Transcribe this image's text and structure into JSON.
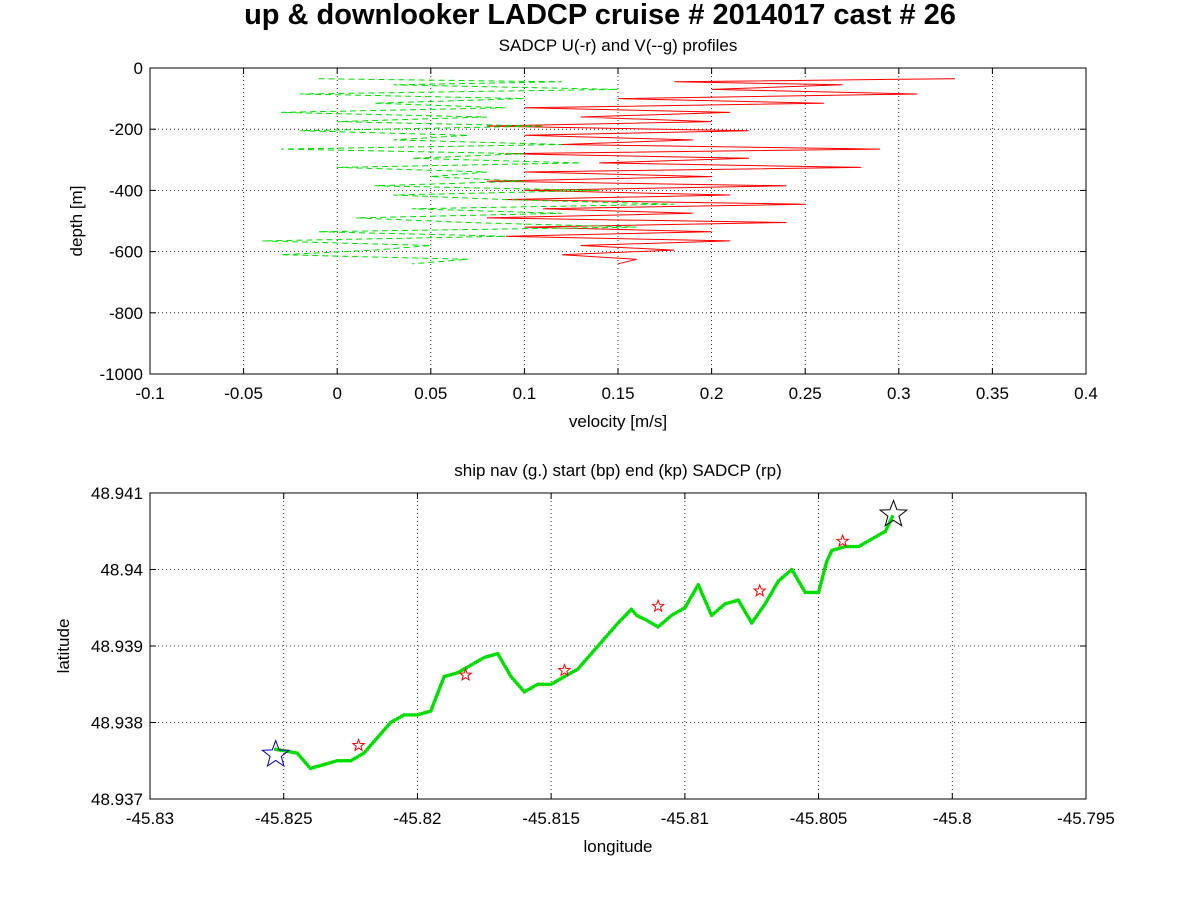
{
  "figure_title": "up & downlooker LADCP cruise # 2014017 cast # 26",
  "colors": {
    "u": "#ff0000",
    "v": "#00dd00",
    "start_star": "#0000aa",
    "end_star": "#000000",
    "sadcp": "#ff0000"
  },
  "chart_data": [
    {
      "type": "line",
      "title": "SADCP U(-r) and V(--g) profiles",
      "xlabel": "velocity [m/s]",
      "ylabel": "depth [m]",
      "xlim": [
        -0.1,
        0.4
      ],
      "ylim": [
        -1000,
        0
      ],
      "xticks": [
        -0.1,
        -0.05,
        0,
        0.05,
        0.1,
        0.15,
        0.2,
        0.25,
        0.3,
        0.35,
        0.4
      ],
      "xtick_labels": [
        "-0.1",
        "-0.05",
        "0",
        "0.05",
        "0.1",
        "0.15",
        "0.2",
        "0.25",
        "0.3",
        "0.35",
        "0.4"
      ],
      "yticks": [
        -1000,
        -800,
        -600,
        -400,
        -200,
        0
      ],
      "ytick_labels": [
        "-1000",
        "-800",
        "-600",
        "-400",
        "-200",
        "0"
      ],
      "grid": true,
      "series": [
        {
          "line_style": "solid",
          "color": "#ff0000",
          "depth": [
            -35,
            -45,
            -55,
            -70,
            -85,
            -100,
            -115,
            -130,
            -145,
            -160,
            -175,
            -190,
            -205,
            -220,
            -235,
            -250,
            -265,
            -280,
            -295,
            -310,
            -325,
            -340,
            -355,
            -370,
            -385,
            -400,
            -415,
            -430,
            -445,
            -460,
            -475,
            -490,
            -505,
            -520,
            -535,
            -550,
            -565,
            -580,
            -595,
            -610,
            -625,
            -640
          ],
          "velocity": [
            0.33,
            0.18,
            0.27,
            0.2,
            0.31,
            0.15,
            0.26,
            0.1,
            0.21,
            0.13,
            0.2,
            0.08,
            0.22,
            0.1,
            0.19,
            0.12,
            0.29,
            0.09,
            0.22,
            0.14,
            0.28,
            0.1,
            0.2,
            0.08,
            0.24,
            0.1,
            0.21,
            0.09,
            0.25,
            0.11,
            0.19,
            0.08,
            0.24,
            0.1,
            0.2,
            0.09,
            0.21,
            0.13,
            0.18,
            0.12,
            0.16,
            0.15
          ]
        },
        {
          "line_style": "dashed",
          "color": "#00dd00",
          "depth": [
            -35,
            -45,
            -55,
            -70,
            -85,
            -100,
            -115,
            -130,
            -145,
            -160,
            -175,
            -190,
            -205,
            -220,
            -235,
            -250,
            -265,
            -280,
            -295,
            -310,
            -325,
            -340,
            -355,
            -370,
            -385,
            -400,
            -415,
            -430,
            -445,
            -460,
            -475,
            -490,
            -505,
            -520,
            -535,
            -550,
            -565,
            -580,
            -595,
            -610,
            -625,
            -640
          ],
          "velocity": [
            -0.01,
            0.12,
            0.03,
            0.15,
            -0.02,
            0.1,
            0.02,
            0.09,
            -0.03,
            0.08,
            0.0,
            0.11,
            -0.02,
            0.07,
            0.03,
            0.12,
            -0.03,
            0.1,
            0.04,
            0.13,
            0.0,
            0.08,
            0.05,
            0.1,
            0.02,
            0.14,
            0.03,
            0.09,
            0.18,
            0.04,
            0.12,
            0.01,
            0.07,
            0.16,
            -0.01,
            0.09,
            -0.04,
            0.05,
            0.02,
            -0.03,
            0.07,
            0.04
          ]
        }
      ]
    },
    {
      "type": "scatter",
      "title": "ship nav (g.) start (bp) end (kp) SADCP (rp)",
      "xlabel": "longitude",
      "ylabel": "latitude",
      "xlim": [
        -45.83,
        -45.795
      ],
      "ylim": [
        48.937,
        48.941
      ],
      "xticks": [
        -45.83,
        -45.825,
        -45.82,
        -45.815,
        -45.81,
        -45.805,
        -45.8,
        -45.795
      ],
      "xtick_labels": [
        "-45.83",
        "-45.825",
        "-45.82",
        "-45.815",
        "-45.81",
        "-45.805",
        "-45.8",
        "-45.795"
      ],
      "yticks": [
        48.937,
        48.938,
        48.939,
        48.94,
        48.941
      ],
      "ytick_labels": [
        "48.937",
        "48.938",
        "48.939",
        "48.94",
        "48.941"
      ],
      "grid": true,
      "ship_track": {
        "lon": [
          -45.8253,
          -45.8245,
          -45.824,
          -45.8235,
          -45.823,
          -45.8225,
          -45.822,
          -45.8215,
          -45.821,
          -45.8205,
          -45.82,
          -45.8195,
          -45.819,
          -45.8185,
          -45.818,
          -45.8175,
          -45.817,
          -45.8165,
          -45.816,
          -45.8155,
          -45.815,
          -45.8145,
          -45.814,
          -45.8135,
          -45.813,
          -45.8125,
          -45.812,
          -45.8118,
          -45.8115,
          -45.811,
          -45.8105,
          -45.81,
          -45.8095,
          -45.809,
          -45.8085,
          -45.808,
          -45.8075,
          -45.807,
          -45.8065,
          -45.806,
          -45.8055,
          -45.805,
          -45.8047,
          -45.8045,
          -45.804,
          -45.8035,
          -45.803,
          -45.8025,
          -45.8022
        ],
        "lat": [
          48.93765,
          48.9376,
          48.9374,
          48.93745,
          48.9375,
          48.9375,
          48.9376,
          48.9378,
          48.938,
          48.9381,
          48.9381,
          48.93815,
          48.9386,
          48.93865,
          48.93875,
          48.93885,
          48.9389,
          48.9386,
          48.9384,
          48.9385,
          48.9385,
          48.9386,
          48.9387,
          48.9389,
          48.9391,
          48.9393,
          48.93948,
          48.9394,
          48.93935,
          48.93925,
          48.9394,
          48.9395,
          48.9398,
          48.9394,
          48.93955,
          48.9396,
          48.9393,
          48.93955,
          48.93985,
          48.94,
          48.9397,
          48.9397,
          48.9401,
          48.94025,
          48.9403,
          48.9403,
          48.9404,
          48.9405,
          48.94072
        ]
      },
      "start": {
        "lon": -45.8253,
        "lat": 48.93758
      },
      "end": {
        "lon": -45.8022,
        "lat": 48.94072
      },
      "sadcp_points": {
        "lon": [
          -45.8222,
          -45.8182,
          -45.8145,
          -45.811,
          -45.8072,
          -45.8041
        ],
        "lat": [
          48.9377,
          48.93862,
          48.93868,
          48.93952,
          48.93972,
          48.94037
        ]
      }
    }
  ]
}
